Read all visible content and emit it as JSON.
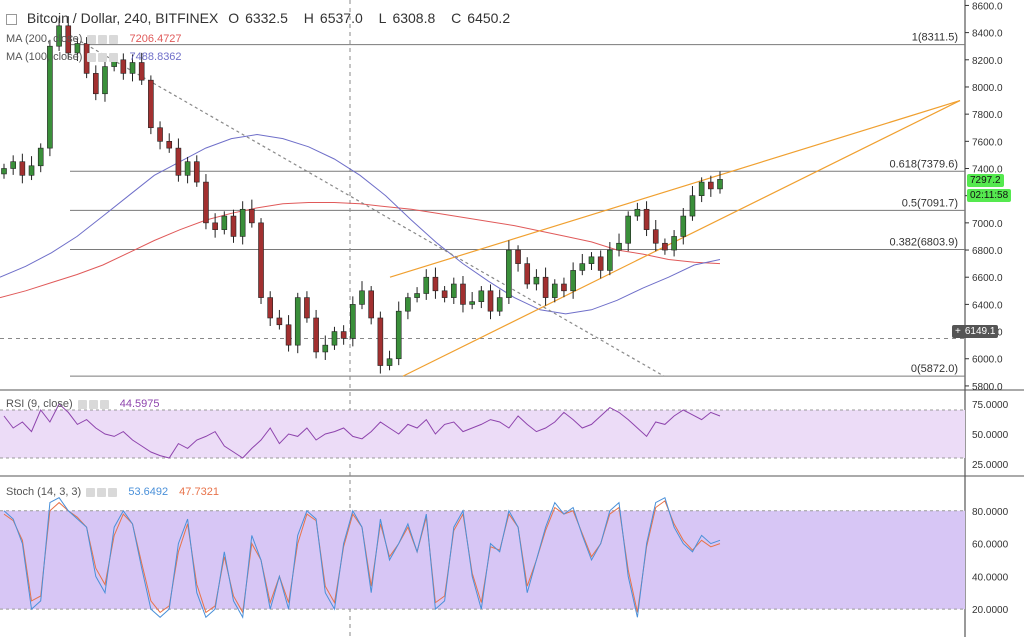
{
  "header": {
    "symbol": "Bitcoin / Dollar, 240, BITFINEX",
    "open_label": "O",
    "open": "6332.5",
    "high_label": "H",
    "high": "6537.0",
    "low_label": "L",
    "low": "6308.8",
    "close_label": "C",
    "close": "6450.2"
  },
  "ma200": {
    "label": "MA (200, close)",
    "value": "7206.4727",
    "color": "#e05a5a"
  },
  "ma100": {
    "label": "MA (100, close)",
    "value": "7488.8362",
    "color": "#6f6fc9"
  },
  "rsi_legend": {
    "label": "RSI (9, close)",
    "value": "44.5975",
    "color": "#8e44ad"
  },
  "stoch_legend": {
    "label": "Stoch (14, 3, 3)",
    "k": "53.6492",
    "d": "47.7321",
    "k_color": "#4a90d9",
    "d_color": "#e8734a"
  },
  "badges": {
    "last_price": "7297.2",
    "countdown": "02:11:58",
    "crosshair_price": "6149.1",
    "green": "#55e94f"
  },
  "chart_data": {
    "type": "candlestick",
    "price_axis": {
      "ticks": [
        "8600.0",
        "8400.0",
        "8200.0",
        "8000.0",
        "7800.0",
        "7600.0",
        "7400.0",
        "7200.0",
        "7000.0",
        "6800.0",
        "6600.0",
        "6400.0",
        "6200.0",
        "6000.0",
        "5800.0"
      ],
      "range": [
        5770,
        8640
      ]
    },
    "fib_levels": [
      {
        "label": "1(8311.5)",
        "value": 8311.5
      },
      {
        "label": "0.618(7379.6)",
        "value": 7379.6
      },
      {
        "label": "0.5(7091.7)",
        "value": 7091.7
      },
      {
        "label": "0.382(6803.9)",
        "value": 6803.9
      },
      {
        "label": "0(5872.0)",
        "value": 5872.0
      }
    ],
    "crosshair_value": 6149.1,
    "close_series": [
      7400,
      7450,
      7350,
      7420,
      7550,
      8300,
      8450,
      8250,
      8320,
      8100,
      7950,
      8150,
      8200,
      8100,
      8180,
      8050,
      7700,
      7600,
      7550,
      7350,
      7450,
      7300,
      7000,
      6950,
      7050,
      6900,
      7100,
      7000,
      6450,
      6300,
      6250,
      6100,
      6450,
      6300,
      6050,
      6100,
      6200,
      6150,
      6400,
      6500,
      6300,
      5950,
      6000,
      6350,
      6450,
      6480,
      6600,
      6500,
      6450,
      6550,
      6400,
      6420,
      6500,
      6350,
      6450,
      6800,
      6700,
      6550,
      6600,
      6450,
      6550,
      6500,
      6650,
      6700,
      6750,
      6650,
      6800,
      6850,
      7050,
      7100,
      6950,
      6850,
      6800,
      6900,
      7050,
      7200,
      7300,
      7250,
      7320
    ],
    "ma100_series": [
      6600,
      6680,
      6780,
      6900,
      7050,
      7200,
      7350,
      7450,
      7550,
      7620,
      7650,
      7620,
      7560,
      7470,
      7350,
      7200,
      7020,
      6850,
      6700,
      6570,
      6450,
      6360,
      6330,
      6360,
      6430,
      6520,
      6600,
      6690,
      6730
    ],
    "ma200_series": [
      6450,
      6500,
      6560,
      6620,
      6690,
      6780,
      6870,
      6950,
      7020,
      7070,
      7110,
      7140,
      7150,
      7150,
      7140,
      7120,
      7100,
      7070,
      7040,
      7010,
      6980,
      6940,
      6900,
      6860,
      6800,
      6770,
      6730,
      6710,
      6700
    ],
    "trend_lines": [
      {
        "name": "resistance",
        "from": [
          390,
          6600
        ],
        "to": [
          960,
          7900
        ],
        "color": "#f0a030"
      },
      {
        "name": "support",
        "from": [
          403,
          5872
        ],
        "to": [
          960,
          7900
        ],
        "color": "#f0a030"
      },
      {
        "name": "downtrend",
        "from": [
          70,
          8380
        ],
        "to": [
          664,
          5872
        ],
        "color": "#888888"
      }
    ],
    "rsi": {
      "axis_ticks": [
        "75.0000",
        "50.0000",
        "25.0000"
      ],
      "range": [
        15,
        85
      ],
      "band": [
        30,
        70
      ],
      "values": [
        65,
        55,
        60,
        52,
        70,
        60,
        75,
        68,
        58,
        62,
        55,
        50,
        48,
        52,
        45,
        40,
        35,
        32,
        30,
        42,
        38,
        45,
        48,
        52,
        40,
        35,
        30,
        38,
        45,
        55,
        42,
        50,
        48,
        55,
        45,
        50,
        52,
        55,
        48,
        46,
        52,
        60,
        55,
        50,
        58,
        55,
        62,
        50,
        58,
        60,
        52,
        55,
        58,
        62,
        60,
        55,
        65,
        58,
        52,
        55,
        60,
        68,
        62,
        55,
        58,
        65,
        72,
        68,
        62,
        55,
        48,
        60,
        58,
        65,
        70,
        66,
        62,
        68,
        65
      ]
    },
    "stoch": {
      "axis_ticks": [
        "80.0000",
        "60.0000",
        "40.0000",
        "20.0000"
      ],
      "range": [
        3,
        100
      ],
      "band": [
        20,
        80
      ],
      "k_values": [
        80,
        75,
        60,
        20,
        25,
        85,
        88,
        80,
        75,
        70,
        40,
        30,
        70,
        80,
        72,
        45,
        20,
        15,
        20,
        60,
        75,
        30,
        15,
        20,
        55,
        25,
        15,
        65,
        50,
        20,
        40,
        20,
        65,
        80,
        75,
        30,
        20,
        60,
        80,
        70,
        30,
        75,
        50,
        60,
        72,
        55,
        78,
        20,
        25,
        70,
        80,
        40,
        20,
        60,
        55,
        80,
        70,
        30,
        50,
        70,
        85,
        78,
        82,
        65,
        50,
        60,
        80,
        85,
        40,
        15,
        60,
        85,
        88,
        70,
        60,
        55,
        65,
        60,
        62
      ],
      "d_values": [
        78,
        74,
        62,
        25,
        28,
        80,
        85,
        80,
        76,
        70,
        45,
        35,
        65,
        78,
        72,
        48,
        25,
        18,
        22,
        55,
        72,
        35,
        18,
        22,
        52,
        28,
        18,
        60,
        50,
        24,
        40,
        24,
        60,
        78,
        74,
        34,
        24,
        58,
        78,
        70,
        34,
        72,
        52,
        60,
        70,
        55,
        76,
        24,
        28,
        68,
        78,
        42,
        24,
        58,
        56,
        78,
        70,
        34,
        50,
        68,
        82,
        78,
        80,
        66,
        52,
        60,
        78,
        82,
        44,
        18,
        58,
        82,
        86,
        72,
        62,
        56,
        62,
        58,
        60
      ]
    }
  }
}
